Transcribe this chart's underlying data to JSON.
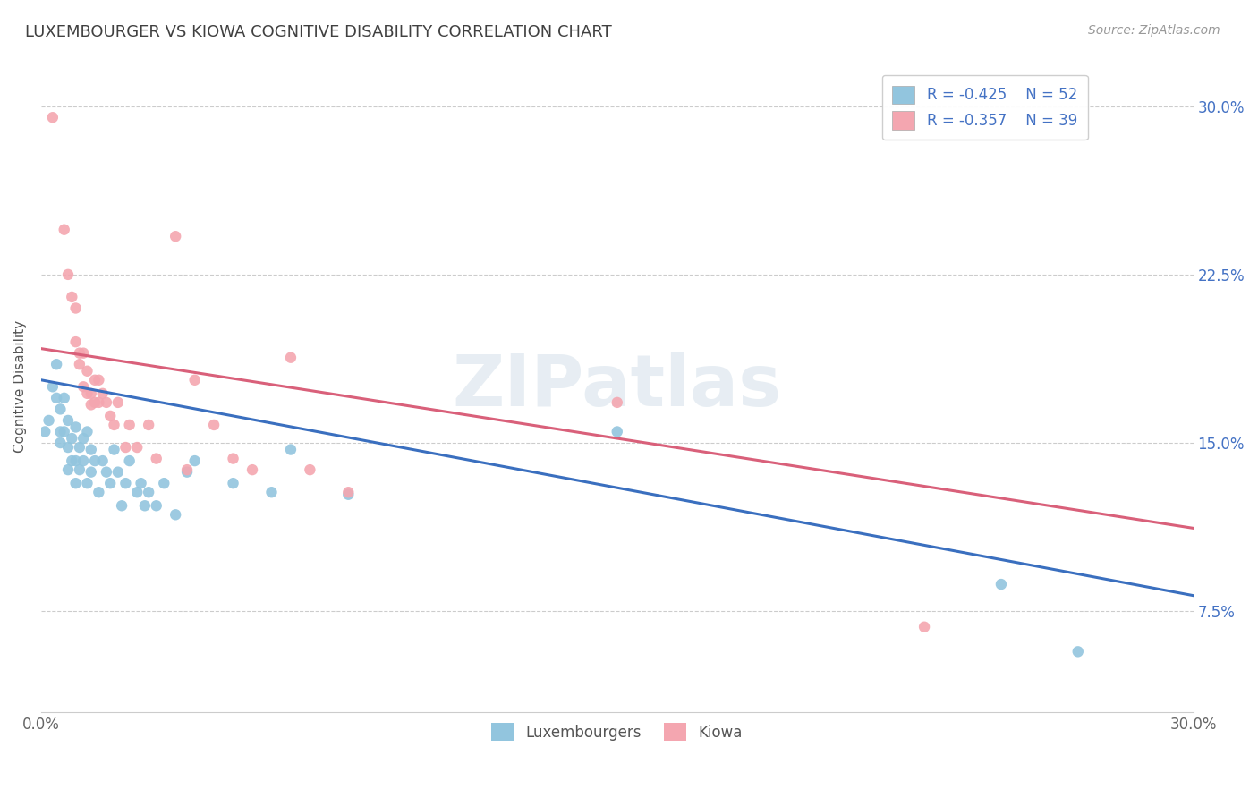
{
  "title": "LUXEMBOURGER VS KIOWA COGNITIVE DISABILITY CORRELATION CHART",
  "source_text": "Source: ZipAtlas.com",
  "ylabel": "Cognitive Disability",
  "xmin": 0.0,
  "xmax": 0.3,
  "ymin": 0.03,
  "ymax": 0.32,
  "yticks": [
    0.075,
    0.15,
    0.225,
    0.3
  ],
  "ytick_labels": [
    "7.5%",
    "15.0%",
    "22.5%",
    "30.0%"
  ],
  "xticks": [
    0.0,
    0.3
  ],
  "xtick_labels": [
    "0.0%",
    "30.0%"
  ],
  "legend_labels": [
    "Luxembourgers",
    "Kiowa"
  ],
  "blue_R": "-0.425",
  "blue_N": "52",
  "pink_R": "-0.357",
  "pink_N": "39",
  "blue_color": "#92c5de",
  "pink_color": "#f4a6b0",
  "blue_line_color": "#3a6fbf",
  "pink_line_color": "#d9607a",
  "watermark": "ZIPatlas",
  "blue_line": [
    0.178,
    0.082
  ],
  "pink_line": [
    0.192,
    0.112
  ],
  "blue_scatter": [
    [
      0.001,
      0.155
    ],
    [
      0.002,
      0.16
    ],
    [
      0.003,
      0.175
    ],
    [
      0.004,
      0.17
    ],
    [
      0.004,
      0.185
    ],
    [
      0.005,
      0.165
    ],
    [
      0.005,
      0.155
    ],
    [
      0.005,
      0.15
    ],
    [
      0.006,
      0.17
    ],
    [
      0.006,
      0.155
    ],
    [
      0.007,
      0.16
    ],
    [
      0.007,
      0.148
    ],
    [
      0.007,
      0.138
    ],
    [
      0.008,
      0.152
    ],
    [
      0.008,
      0.142
    ],
    [
      0.009,
      0.157
    ],
    [
      0.009,
      0.142
    ],
    [
      0.009,
      0.132
    ],
    [
      0.01,
      0.148
    ],
    [
      0.01,
      0.138
    ],
    [
      0.011,
      0.152
    ],
    [
      0.011,
      0.142
    ],
    [
      0.012,
      0.155
    ],
    [
      0.012,
      0.132
    ],
    [
      0.013,
      0.147
    ],
    [
      0.013,
      0.137
    ],
    [
      0.014,
      0.142
    ],
    [
      0.015,
      0.128
    ],
    [
      0.016,
      0.142
    ],
    [
      0.017,
      0.137
    ],
    [
      0.018,
      0.132
    ],
    [
      0.019,
      0.147
    ],
    [
      0.02,
      0.137
    ],
    [
      0.021,
      0.122
    ],
    [
      0.022,
      0.132
    ],
    [
      0.023,
      0.142
    ],
    [
      0.025,
      0.128
    ],
    [
      0.026,
      0.132
    ],
    [
      0.027,
      0.122
    ],
    [
      0.028,
      0.128
    ],
    [
      0.03,
      0.122
    ],
    [
      0.032,
      0.132
    ],
    [
      0.035,
      0.118
    ],
    [
      0.038,
      0.137
    ],
    [
      0.04,
      0.142
    ],
    [
      0.05,
      0.132
    ],
    [
      0.06,
      0.128
    ],
    [
      0.065,
      0.147
    ],
    [
      0.08,
      0.127
    ],
    [
      0.15,
      0.155
    ],
    [
      0.25,
      0.087
    ],
    [
      0.27,
      0.057
    ]
  ],
  "pink_scatter": [
    [
      0.003,
      0.295
    ],
    [
      0.006,
      0.245
    ],
    [
      0.007,
      0.225
    ],
    [
      0.008,
      0.215
    ],
    [
      0.009,
      0.21
    ],
    [
      0.009,
      0.195
    ],
    [
      0.01,
      0.19
    ],
    [
      0.01,
      0.185
    ],
    [
      0.011,
      0.19
    ],
    [
      0.011,
      0.175
    ],
    [
      0.012,
      0.182
    ],
    [
      0.012,
      0.172
    ],
    [
      0.013,
      0.172
    ],
    [
      0.013,
      0.167
    ],
    [
      0.014,
      0.178
    ],
    [
      0.014,
      0.168
    ],
    [
      0.015,
      0.178
    ],
    [
      0.015,
      0.168
    ],
    [
      0.016,
      0.172
    ],
    [
      0.017,
      0.168
    ],
    [
      0.018,
      0.162
    ],
    [
      0.019,
      0.158
    ],
    [
      0.02,
      0.168
    ],
    [
      0.022,
      0.148
    ],
    [
      0.023,
      0.158
    ],
    [
      0.025,
      0.148
    ],
    [
      0.028,
      0.158
    ],
    [
      0.03,
      0.143
    ],
    [
      0.035,
      0.242
    ],
    [
      0.038,
      0.138
    ],
    [
      0.04,
      0.178
    ],
    [
      0.045,
      0.158
    ],
    [
      0.05,
      0.143
    ],
    [
      0.055,
      0.138
    ],
    [
      0.065,
      0.188
    ],
    [
      0.07,
      0.138
    ],
    [
      0.08,
      0.128
    ],
    [
      0.15,
      0.168
    ],
    [
      0.23,
      0.068
    ]
  ]
}
